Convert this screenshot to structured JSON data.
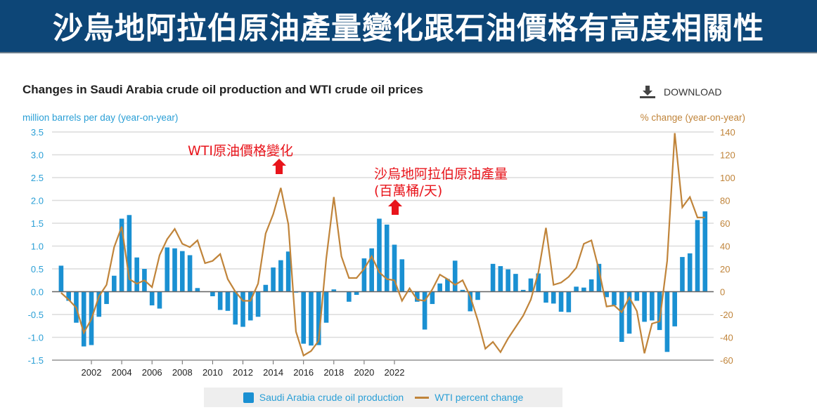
{
  "banner_title": "沙烏地阿拉伯原油產量變化跟石油價格有高度相關性",
  "download_label": "DOWNLOAD",
  "annotations": {
    "wti": "WTI原油價格變化",
    "saudi_line1": "沙烏地阿拉伯原油產量",
    "saudi_line2": "(百萬桶/天)"
  },
  "colors": {
    "bars": "#1a90d2",
    "line": "#c0843a",
    "banner": "#0d4677",
    "annotation": "#e8141b"
  },
  "chart_data": {
    "type": "bar+line",
    "title": "Changes in Saudi Arabia crude oil production and WTI crude oil prices",
    "ylabel_left": "million barrels per day (year-on-year)",
    "ylabel_right": "% change (year-on-year)",
    "ylim_left": [
      -1.5,
      3.5
    ],
    "ylim_right": [
      -60,
      140
    ],
    "yticks_left": [
      "3.5",
      "3.0",
      "2.5",
      "2.0",
      "1.5",
      "1.0",
      "0.5",
      "0.0",
      "-0.5",
      "-1.0",
      "-1.5"
    ],
    "yticks_right": [
      "140",
      "120",
      "100",
      "80",
      "60",
      "40",
      "20",
      "0",
      "-20",
      "-40",
      "-60"
    ],
    "xticks": [
      "2002",
      "2004",
      "2006",
      "2008",
      "2010",
      "2012",
      "2014",
      "2016",
      "2018",
      "2020",
      "2022"
    ],
    "x_start": "2001-Q1",
    "x_frequency": "quarterly",
    "grid": true,
    "legend_position": "bottom",
    "series": [
      {
        "name": "Saudi Arabia crude oil production",
        "axis": "left",
        "type": "bar",
        "values": [
          0.57,
          -0.2,
          -0.68,
          -1.2,
          -1.17,
          -0.55,
          -0.27,
          0.35,
          1.6,
          1.68,
          0.75,
          0.5,
          -0.3,
          -0.37,
          0.97,
          0.95,
          0.89,
          0.8,
          0.08,
          0,
          -0.1,
          -0.4,
          -0.42,
          -0.72,
          -0.77,
          -0.63,
          -0.55,
          0.15,
          0.53,
          0.69,
          0.88,
          -0.02,
          -1.14,
          -1.18,
          -1.17,
          -0.68,
          0.05,
          0,
          -0.22,
          -0.07,
          0.73,
          0.95,
          1.6,
          1.47,
          1.03,
          0.71,
          0.02,
          -0.22,
          -0.83,
          -0.27,
          0.18,
          0.28,
          0.68,
          0.04,
          -0.43,
          -0.18,
          0,
          0.61,
          0.56,
          0.49,
          0.39,
          0.04,
          0.29,
          0.4,
          -0.24,
          -0.26,
          -0.44,
          -0.45,
          0.11,
          0.09,
          0.27,
          0.61,
          -0.12,
          -0.3,
          -1.1,
          -0.92,
          -0.2,
          -0.66,
          -0.63,
          -0.84,
          -1.32,
          -0.76,
          0.76,
          0.84,
          1.57,
          1.76
        ]
      },
      {
        "name": "WTI percent change",
        "axis": "right",
        "type": "line",
        "values": [
          -1,
          -7,
          -14,
          -36,
          -24,
          -4,
          6,
          39,
          57,
          11,
          7,
          10,
          4,
          32,
          46,
          55,
          42,
          39,
          45,
          25,
          27,
          33,
          11,
          0,
          -8,
          -8,
          7,
          51,
          68,
          91,
          59,
          -35,
          -56,
          -52,
          -43,
          29,
          83,
          31,
          12,
          12,
          20,
          31,
          17,
          11,
          10,
          -8,
          3,
          -7,
          -8,
          2,
          15,
          11,
          6,
          10,
          -4,
          -25,
          -50,
          -44,
          -53,
          -41,
          -31,
          -21,
          -7,
          17,
          56,
          6,
          8,
          13,
          21,
          42,
          45,
          19,
          -13,
          -12,
          -18,
          -5,
          -17,
          -54,
          -28,
          -26,
          27,
          139,
          74,
          83,
          65,
          65
        ]
      }
    ]
  }
}
